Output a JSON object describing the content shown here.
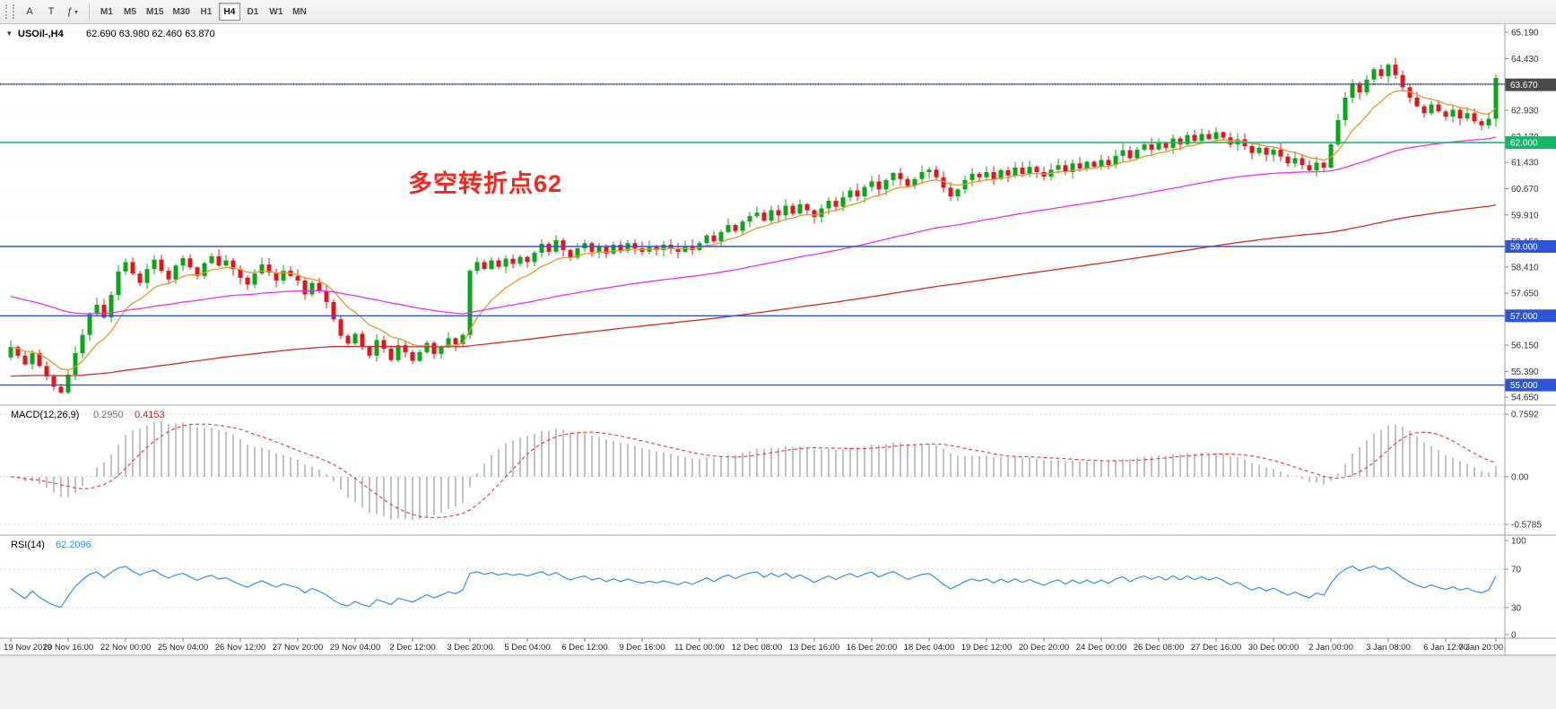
{
  "toolbar": {
    "tools": [
      {
        "name": "text-label-tool",
        "glyph": "A"
      },
      {
        "name": "objects-tool",
        "glyph": "T"
      },
      {
        "name": "indicators-menu",
        "glyph": "ƒ",
        "has_dropdown": true
      }
    ],
    "timeframes": [
      "M1",
      "M5",
      "M15",
      "M30",
      "H1",
      "H4",
      "D1",
      "W1",
      "MN"
    ],
    "active_timeframe": "H4"
  },
  "chart": {
    "symbol_label": "USOil-,H4",
    "ohlc_text": "62.690 63.980 62.460 63.870",
    "ohlc": {
      "open": "62.690",
      "high": "63.980",
      "low": "62.460",
      "close": "63.870"
    },
    "annotation": "多空转折点62",
    "annotation_color": "#f3281e",
    "candle_up_color": "#0ea319",
    "candle_down_color": "#e0161c",
    "price_axis_labels": [
      "65.190",
      "64.430",
      "63.690",
      "62.930",
      "62.170",
      "61.430",
      "60.670",
      "59.910",
      "59.150",
      "58.410",
      "57.650",
      "56.900",
      "56.150",
      "55.390",
      "54.650"
    ],
    "price_badges": [
      {
        "value": "63.670",
        "price": 63.67,
        "color": "#4a4a4a"
      },
      {
        "value": "62.000",
        "price": 62.0,
        "color": "#12b76a"
      },
      {
        "value": "59.000",
        "price": 59.0,
        "color": "#2e55d4"
      },
      {
        "value": "57.000",
        "price": 57.0,
        "color": "#2e55d4"
      },
      {
        "value": "55.000",
        "price": 55.0,
        "color": "#2e55d4"
      }
    ],
    "hlines": [
      {
        "price": 63.69,
        "color": "#3a5bc0",
        "width": 1.1
      },
      {
        "price": 63.67,
        "color": "#4a4a4a",
        "width": 1,
        "dash": "1,2"
      },
      {
        "price": 62.0,
        "color": "#12c06e",
        "width": 1.6
      },
      {
        "price": 59.0,
        "color": "#2e55d4",
        "width": 1.4
      },
      {
        "price": 57.0,
        "color": "#2e55d4",
        "width": 1.4
      },
      {
        "price": 55.0,
        "color": "#2e55d4",
        "width": 1.4
      }
    ]
  },
  "chart_data": {
    "type": "candlestick",
    "symbol": "USOil-",
    "timeframe": "H4",
    "first_open": 55.8,
    "closes": [
      56.1,
      55.85,
      55.6,
      55.92,
      55.55,
      55.25,
      54.95,
      54.78,
      55.3,
      55.92,
      56.45,
      57.05,
      57.32,
      56.95,
      57.6,
      58.28,
      58.55,
      58.22,
      57.95,
      58.35,
      58.62,
      58.3,
      58.05,
      58.45,
      58.66,
      58.4,
      58.15,
      58.52,
      58.72,
      58.45,
      58.6,
      58.35,
      58.1,
      57.9,
      58.22,
      58.48,
      58.25,
      58.02,
      58.3,
      58.15,
      58.02,
      57.62,
      57.95,
      57.72,
      57.4,
      56.9,
      56.42,
      56.2,
      56.48,
      56.1,
      55.85,
      56.3,
      56.05,
      55.72,
      56.15,
      55.95,
      55.7,
      55.95,
      56.22,
      55.9,
      56.1,
      56.35,
      56.18,
      56.45,
      58.3,
      58.55,
      58.35,
      58.6,
      58.42,
      58.65,
      58.5,
      58.7,
      58.55,
      58.82,
      59.08,
      58.85,
      59.18,
      58.9,
      58.68,
      58.95,
      59.1,
      58.85,
      59.02,
      58.8,
      59.05,
      58.88,
      59.1,
      58.95,
      58.85,
      59.0,
      58.9,
      59.05,
      58.95,
      58.85,
      59.02,
      58.9,
      59.1,
      59.32,
      59.15,
      59.42,
      59.62,
      59.45,
      59.72,
      59.88,
      59.98,
      59.75,
      60.05,
      59.9,
      60.18,
      59.95,
      60.22,
      60.05,
      59.85,
      60.1,
      60.32,
      60.15,
      60.42,
      60.62,
      60.45,
      60.72,
      60.88,
      60.65,
      60.92,
      61.12,
      60.95,
      60.75,
      60.95,
      61.15,
      61.22,
      61.0,
      60.7,
      60.45,
      60.65,
      60.92,
      61.1,
      61.0,
      61.15,
      60.95,
      61.2,
      61.05,
      61.28,
      61.1,
      61.3,
      61.15,
      61.02,
      61.22,
      61.35,
      61.15,
      61.4,
      61.25,
      61.45,
      61.3,
      61.5,
      61.35,
      61.62,
      61.78,
      61.55,
      61.8,
      61.95,
      61.8,
      62.0,
      61.85,
      62.12,
      61.95,
      62.22,
      62.05,
      62.25,
      62.1,
      62.3,
      62.15,
      61.95,
      62.1,
      61.9,
      61.7,
      61.85,
      61.65,
      61.8,
      61.6,
      61.4,
      61.55,
      61.35,
      61.2,
      61.42,
      61.28,
      61.95,
      62.65,
      63.3,
      63.72,
      63.45,
      63.82,
      64.12,
      63.92,
      64.25,
      63.95,
      63.6,
      63.3,
      63.05,
      62.85,
      63.1,
      62.9,
      62.75,
      62.95,
      62.7,
      62.85,
      62.62,
      62.5,
      62.69,
      63.87
    ],
    "last_candle": {
      "open": 62.69,
      "high": 63.98,
      "low": 62.46,
      "close": 63.87
    },
    "moving_averages": [
      {
        "name": "fast-ma",
        "period": 10,
        "color": "#e8972c",
        "start": null
      },
      {
        "name": "medium-ma",
        "period": 70,
        "color": "#e832e8",
        "start": 57.6
      },
      {
        "name": "slow-ma",
        "period": 200,
        "color": "#d22b2b",
        "start": 55.25
      }
    ],
    "time_labels": [
      "19 Nov 2019",
      "20 Nov 16:00",
      "22 Nov 00:00",
      "25 Nov 04:00",
      "26 Nov 12:00",
      "27 Nov 20:00",
      "29 Nov 04:00",
      "2 Dec 12:00",
      "3 Dec 20:00",
      "5 Dec 04:00",
      "6 Dec 12:00",
      "9 Dec 16:00",
      "11 Dec 00:00",
      "12 Dec 08:00",
      "13 Dec 16:00",
      "16 Dec 20:00",
      "18 Dec 04:00",
      "19 Dec 12:00",
      "20 Dec 20:00",
      "24 Dec 00:00",
      "26 Dec 08:00",
      "27 Dec 16:00",
      "30 Dec 00:00",
      "2 Jan 00:00",
      "3 Jan 08:00",
      "6 Jan 12:00",
      "7 Jan 20:00"
    ],
    "indicators": {
      "macd": {
        "label": "MACD(12,26,9)",
        "main_value": "0.2950",
        "signal_value": "0.4153",
        "histogram_color": "#a6a6a6",
        "signal_color": "#e03a3a",
        "scale": [
          "0.7592",
          "0.00",
          "-0.5785"
        ]
      },
      "rsi": {
        "label": "RSI(14)",
        "value": "62.2096",
        "line_color": "#3b8ee2",
        "levels": [
          70,
          30
        ],
        "scale": [
          "100",
          "70",
          "30",
          "0"
        ]
      }
    }
  }
}
